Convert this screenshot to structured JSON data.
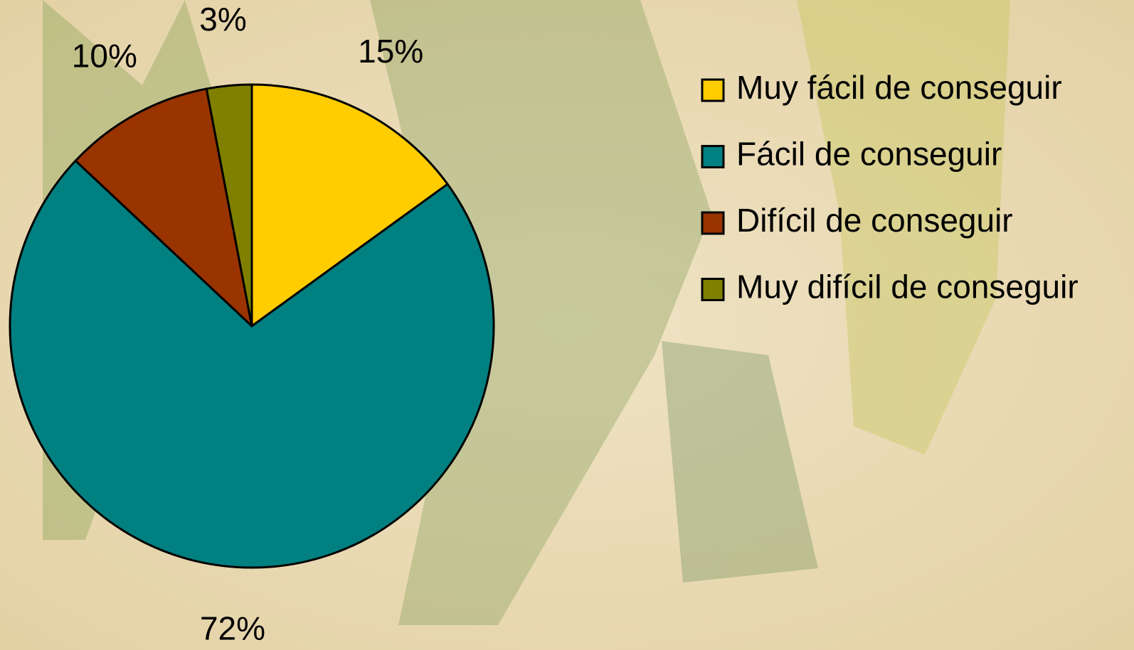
{
  "chart_data": {
    "type": "pie",
    "categories": [
      "Muy fácil de conseguir",
      "Fácil de conseguir",
      "Difícil de conseguir",
      "Muy difícil de conseguir"
    ],
    "values": [
      15,
      72,
      10,
      3
    ],
    "value_labels": [
      "15%",
      "72%",
      "10%",
      "3%"
    ],
    "colors": [
      "#ffcc00",
      "#008080",
      "#993300",
      "#808000"
    ],
    "legend": "right"
  }
}
